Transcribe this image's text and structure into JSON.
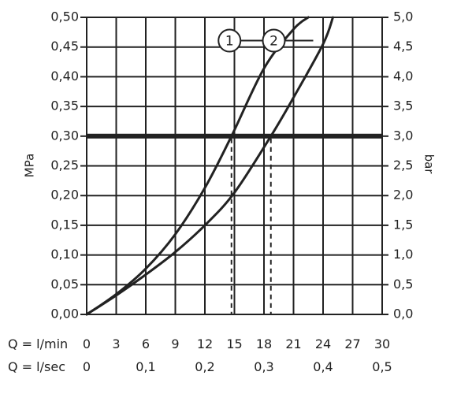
{
  "chart_data": {
    "type": "line",
    "title": "",
    "ylabel_left": "MPa",
    "ylabel_right": "bar",
    "ylim_left": [
      0,
      0.5
    ],
    "ylim_right": [
      0,
      5.0
    ],
    "xlim": [
      0,
      30
    ],
    "grid": true,
    "x_row_lmin": {
      "label": "Q = l/min",
      "ticks": [
        {
          "v": 0,
          "label": "0"
        },
        {
          "v": 3,
          "label": "3"
        },
        {
          "v": 6,
          "label": "6"
        },
        {
          "v": 9,
          "label": "9"
        },
        {
          "v": 12,
          "label": "12"
        },
        {
          "v": 15,
          "label": "15"
        },
        {
          "v": 18,
          "label": "18"
        },
        {
          "v": 21,
          "label": "21"
        },
        {
          "v": 24,
          "label": "24"
        },
        {
          "v": 27,
          "label": "27"
        },
        {
          "v": 30,
          "label": "30"
        }
      ]
    },
    "x_row_lsec": {
      "label": "Q = l/sec",
      "ticks": [
        {
          "v": 0,
          "label": "0"
        },
        {
          "v": 6,
          "label": "0,1"
        },
        {
          "v": 12,
          "label": "0,2"
        },
        {
          "v": 18,
          "label": "0,3"
        },
        {
          "v": 24,
          "label": "0,4"
        },
        {
          "v": 30,
          "label": "0,5"
        }
      ]
    },
    "y_left_ticks": [
      {
        "v": 0.0,
        "label": "0,00"
      },
      {
        "v": 0.05,
        "label": "0,05"
      },
      {
        "v": 0.1,
        "label": "0,10"
      },
      {
        "v": 0.15,
        "label": "0,15"
      },
      {
        "v": 0.2,
        "label": "0,20"
      },
      {
        "v": 0.25,
        "label": "0,25"
      },
      {
        "v": 0.3,
        "label": "0,30"
      },
      {
        "v": 0.35,
        "label": "0,35"
      },
      {
        "v": 0.4,
        "label": "0,40"
      },
      {
        "v": 0.45,
        "label": "0,45"
      },
      {
        "v": 0.5,
        "label": "0,50"
      }
    ],
    "y_right_ticks": [
      {
        "v": 0.0,
        "label": "0,0"
      },
      {
        "v": 0.05,
        "label": "0,5"
      },
      {
        "v": 0.1,
        "label": "1,0"
      },
      {
        "v": 0.15,
        "label": "1,5"
      },
      {
        "v": 0.2,
        "label": "2,0"
      },
      {
        "v": 0.25,
        "label": "2,5"
      },
      {
        "v": 0.3,
        "label": "3,0"
      },
      {
        "v": 0.35,
        "label": "3,5"
      },
      {
        "v": 0.4,
        "label": "4,0"
      },
      {
        "v": 0.45,
        "label": "4,5"
      },
      {
        "v": 0.5,
        "label": "5,0"
      }
    ],
    "reference_line": {
      "y": 0.3
    },
    "series": [
      {
        "name": "1",
        "x": [
          0,
          3,
          6,
          9,
          12,
          14.7,
          18,
          21,
          22.5
        ],
        "y": [
          0,
          0.034,
          0.077,
          0.135,
          0.213,
          0.3,
          0.414,
          0.48,
          0.5
        ]
      },
      {
        "name": "2",
        "x": [
          0,
          3,
          6,
          9,
          12,
          15,
          18.7,
          21,
          24,
          25
        ],
        "y": [
          0,
          0.032,
          0.067,
          0.105,
          0.15,
          0.205,
          0.3,
          0.365,
          0.455,
          0.5
        ]
      }
    ],
    "dashed_markers": [
      {
        "series": "1",
        "x": 14.7,
        "y": 0.3
      },
      {
        "series": "2",
        "x": 18.7,
        "y": 0.3
      }
    ],
    "legend_callouts": [
      {
        "label": "1",
        "series": "1",
        "at_y": 0.425
      },
      {
        "label": "2",
        "series": "2",
        "at_y": 0.425
      }
    ]
  }
}
